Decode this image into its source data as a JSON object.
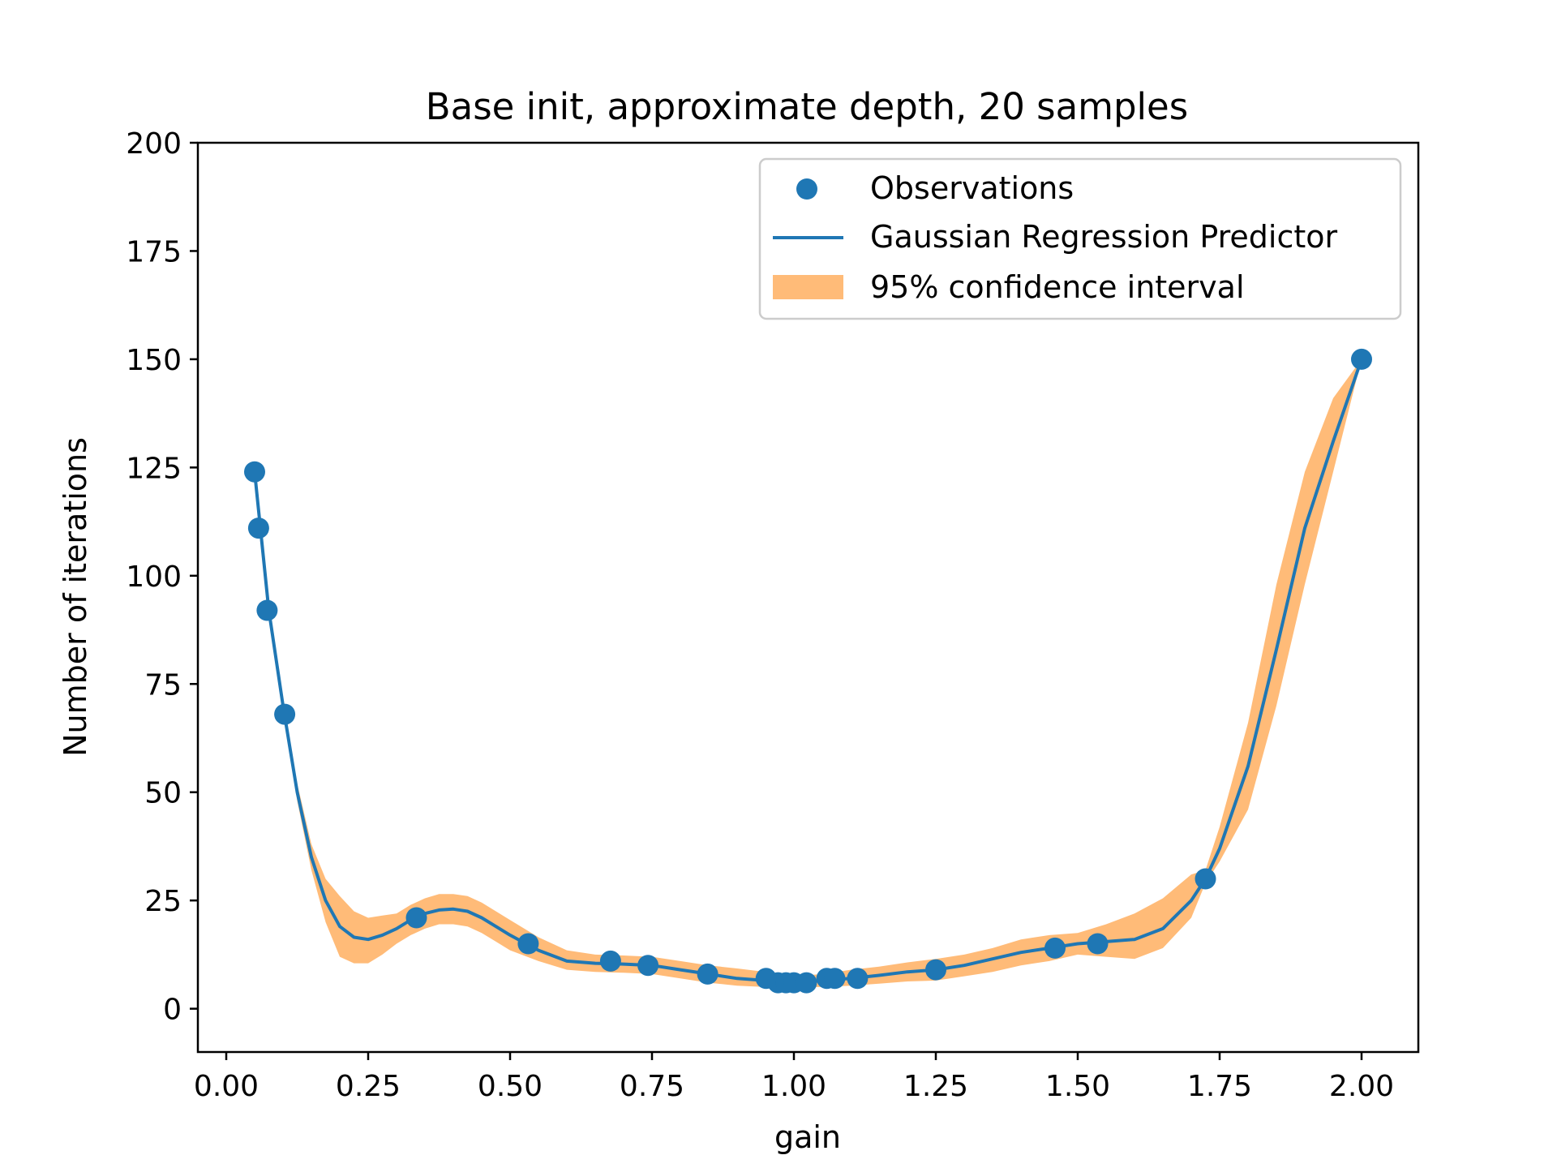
{
  "chart_data": {
    "type": "line",
    "title": "Base init, approximate depth, 20 samples",
    "xlabel": "gain",
    "ylabel": "Number of iterations",
    "xlim": [
      -0.05,
      2.1
    ],
    "ylim": [
      -10,
      200
    ],
    "xticks": [
      "0.00",
      "0.25",
      "0.50",
      "0.75",
      "1.00",
      "1.25",
      "1.50",
      "1.75",
      "2.00"
    ],
    "xtick_values": [
      0,
      0.25,
      0.5,
      0.75,
      1.0,
      1.25,
      1.5,
      1.75,
      2.0
    ],
    "yticks": [
      "0",
      "25",
      "50",
      "75",
      "100",
      "125",
      "150",
      "175",
      "200"
    ],
    "ytick_values": [
      0,
      25,
      50,
      75,
      100,
      125,
      150,
      175,
      200
    ],
    "grid": false,
    "legend_position": "upper-right",
    "legend": [
      "Observations",
      "Gaussian Regression Predictor",
      "95% confidence interval"
    ],
    "colors": {
      "observations": "#1f77b4",
      "predictor": "#1f77b4",
      "confidence": "#ffbb78"
    },
    "observations": {
      "x": [
        0.05,
        0.057,
        0.072,
        0.103,
        0.335,
        0.532,
        0.677,
        0.743,
        0.848,
        0.951,
        0.972,
        0.986,
        1.0,
        1.022,
        1.058,
        1.072,
        1.112,
        1.25,
        1.46,
        1.535,
        1.725,
        2.0
      ],
      "y": [
        124,
        111,
        92,
        68,
        21,
        15,
        11,
        10,
        8,
        7,
        6,
        6,
        6,
        6,
        7,
        7,
        7,
        9,
        14,
        15,
        30,
        150
      ]
    },
    "predictor": {
      "x": [
        0.05,
        0.075,
        0.1,
        0.125,
        0.15,
        0.175,
        0.2,
        0.225,
        0.25,
        0.275,
        0.3,
        0.325,
        0.35,
        0.375,
        0.4,
        0.425,
        0.45,
        0.475,
        0.5,
        0.55,
        0.6,
        0.65,
        0.7,
        0.75,
        0.8,
        0.85,
        0.9,
        0.95,
        1.0,
        1.05,
        1.1,
        1.15,
        1.2,
        1.25,
        1.3,
        1.35,
        1.4,
        1.45,
        1.5,
        1.55,
        1.6,
        1.65,
        1.7,
        1.725,
        1.75,
        1.8,
        1.85,
        1.9,
        1.95,
        2.0
      ],
      "y": [
        124,
        92,
        70,
        50,
        35,
        25,
        19,
        16.5,
        16,
        17,
        18.5,
        20.5,
        22,
        22.8,
        23,
        22.5,
        21,
        19,
        17,
        13.5,
        11,
        10.5,
        10.3,
        10,
        9,
        8,
        7,
        6.5,
        6,
        6.5,
        7,
        7.7,
        8.5,
        9,
        10,
        11.5,
        13,
        14,
        15,
        15.5,
        16,
        18.5,
        25,
        30,
        37,
        56,
        83,
        111,
        131,
        150
      ],
      "lower": [
        124,
        92,
        70,
        48,
        32,
        20,
        12,
        10.5,
        10.5,
        12.5,
        15,
        17,
        18.5,
        19.5,
        19.5,
        19,
        17.5,
        15.5,
        13.5,
        11,
        9,
        8.5,
        8.3,
        8,
        7,
        6,
        5.3,
        5,
        5,
        5,
        5.3,
        5.8,
        6.3,
        6.5,
        7.5,
        8.5,
        10,
        11,
        12.5,
        12,
        11.5,
        14,
        21,
        29,
        34,
        46,
        70,
        98,
        124,
        150
      ],
      "upper": [
        124,
        92,
        70,
        52,
        38,
        30,
        26,
        22.5,
        21,
        21.5,
        22,
        24,
        25.5,
        26.5,
        26.5,
        26,
        24.5,
        22.5,
        20.5,
        16.5,
        13.5,
        12.5,
        12.3,
        12,
        11,
        10,
        9.3,
        8.5,
        7.5,
        8,
        9,
        9.7,
        10.7,
        11.5,
        12.5,
        14,
        16,
        17,
        17.5,
        19.5,
        22,
        25.5,
        31,
        32,
        42,
        66,
        98,
        124,
        141,
        150
      ]
    }
  }
}
